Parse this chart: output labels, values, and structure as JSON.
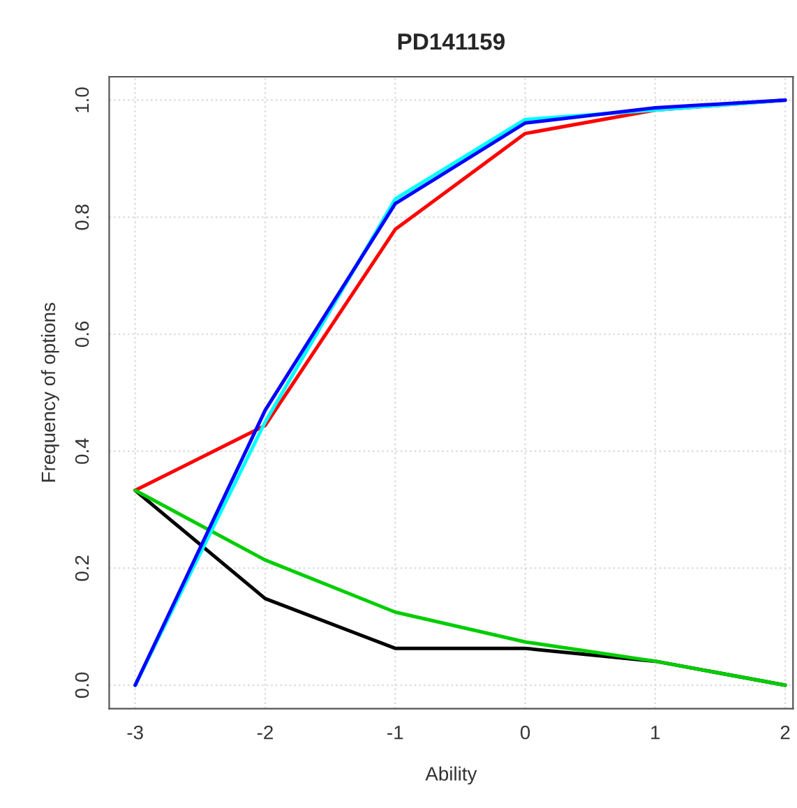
{
  "chart_data": {
    "type": "line",
    "title": "PD141159",
    "xlabel": "Ability",
    "ylabel": "Frequency of options",
    "x": [
      -3,
      -2,
      -1,
      0,
      1,
      2
    ],
    "series": [
      {
        "color": "#000000",
        "values": [
          0.333,
          0.148,
          0.063,
          0.063,
          0.041,
          0.0
        ]
      },
      {
        "color": "#ff0000",
        "values": [
          0.333,
          0.444,
          0.779,
          0.943,
          0.983,
          1.0
        ]
      },
      {
        "color": "#00cd00",
        "values": [
          0.333,
          0.214,
          0.125,
          0.074,
          0.041,
          0.0
        ]
      },
      {
        "color": "#00ffff",
        "values": [
          0.0,
          0.45,
          0.831,
          0.967,
          0.983,
          1.0
        ]
      },
      {
        "color": "#0000ff",
        "values": [
          0.0,
          0.47,
          0.823,
          0.961,
          0.987,
          1.0
        ]
      }
    ],
    "xlim": [
      -3.2,
      2.06
    ],
    "ylim": [
      -0.04,
      1.04
    ],
    "xticks": [
      -3,
      -2,
      -1,
      0,
      1,
      2
    ],
    "yticks": [
      {
        "value": 0,
        "label": "0.0"
      },
      {
        "value": 0.2,
        "label": "0.2"
      },
      {
        "value": 0.4,
        "label": "0.4"
      },
      {
        "value": 0.6,
        "label": "0.6"
      },
      {
        "value": 0.8,
        "label": "0.8"
      },
      {
        "value": 1,
        "label": "1.0"
      }
    ],
    "grid": true,
    "legend": false,
    "marker": "none",
    "line_style": "solid"
  }
}
